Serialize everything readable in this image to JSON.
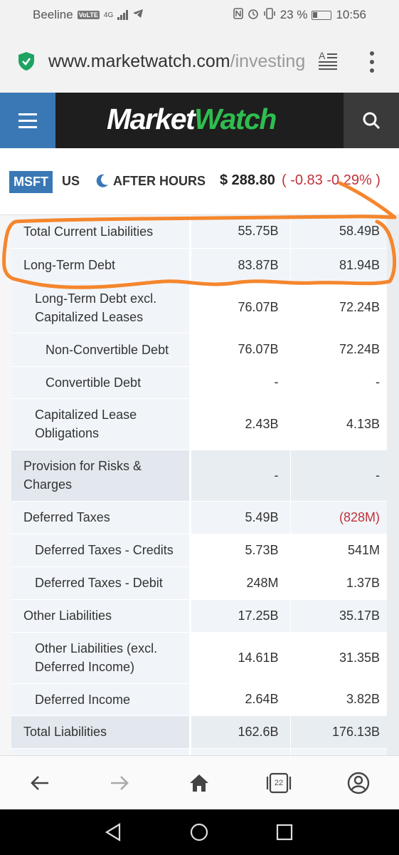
{
  "status_bar": {
    "carrier": "Beeline",
    "volte": "VoLTE",
    "network": "4G",
    "battery": "23 %",
    "time": "10:56"
  },
  "url_bar": {
    "domain": "www.marketwatch.com",
    "path": "/investing"
  },
  "header": {
    "logo_part1": "Market",
    "logo_part2": "Watch"
  },
  "ticker": {
    "symbol": "MSFT",
    "exchange": "US",
    "session": "AFTER HOURS",
    "price": "$ 288.80",
    "change": "( -0.83  -0.29% )"
  },
  "table": {
    "rows": [
      {
        "label": "Total Current Liabilities",
        "v1": "55.75B",
        "v2": "58.49B"
      },
      {
        "label": "Long-Term Debt",
        "v1": "83.87B",
        "v2": "81.94B"
      },
      {
        "label": "Long-Term Debt excl. Capitalized Leases",
        "v1": "76.07B",
        "v2": "72.24B"
      },
      {
        "label": "Non-Convertible Debt",
        "v1": "76.07B",
        "v2": "72.24B"
      },
      {
        "label": "Convertible Debt",
        "v1": "-",
        "v2": "-"
      },
      {
        "label": "Capitalized Lease Obligations",
        "v1": "2.43B",
        "v2": "4.13B"
      },
      {
        "label": "Provision for Risks & Charges",
        "v1": "-",
        "v2": "-"
      },
      {
        "label": "Deferred Taxes",
        "v1": "5.49B",
        "v2": "(828M)"
      },
      {
        "label": "Deferred Taxes - Credits",
        "v1": "5.73B",
        "v2": "541M"
      },
      {
        "label": "Deferred Taxes - Debit",
        "v1": "248M",
        "v2": "1.37B"
      },
      {
        "label": "Other Liabilities",
        "v1": "17.25B",
        "v2": "35.17B"
      },
      {
        "label": "Other Liabilities (excl. Deferred Income)",
        "v1": "14.61B",
        "v2": "31.35B"
      },
      {
        "label": "Deferred Income",
        "v1": "2.64B",
        "v2": "3.82B"
      },
      {
        "label": "Total Liabilities",
        "v1": "162.6B",
        "v2": "176.13B"
      }
    ]
  },
  "bottom_nav": {
    "tab_count": "22"
  },
  "colors": {
    "brand_blue": "#3a78b5",
    "logo_green": "#2ebd4f",
    "negative_red": "#c0323b",
    "annotation_orange": "#f5862d"
  }
}
